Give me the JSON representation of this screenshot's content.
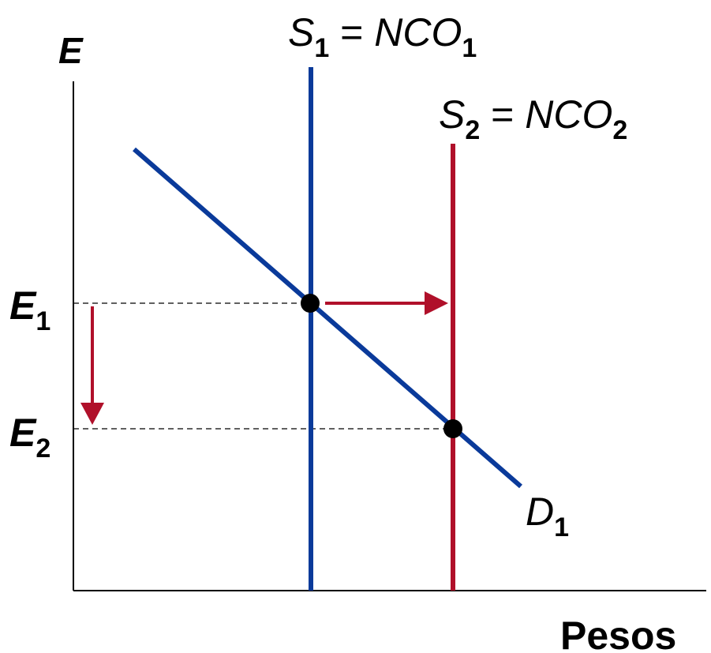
{
  "axes": {
    "y_label": "E",
    "x_label": "Pesos"
  },
  "curves": {
    "supply_1": {
      "main": "S",
      "sub": "1",
      "eq": " = ",
      "rhs": "NCO",
      "rhs_sub": "1"
    },
    "supply_2": {
      "main": "S",
      "sub": "2",
      "eq": " = ",
      "rhs": "NCO",
      "rhs_sub": "2"
    },
    "demand_1": {
      "main": "D",
      "sub": "1"
    }
  },
  "levels": {
    "e1": {
      "main": "E",
      "sub": "1"
    },
    "e2": {
      "main": "E",
      "sub": "2"
    }
  },
  "colors": {
    "supply_1": "#0a3a9a",
    "supply_2": "#b0102a",
    "demand": "#0a3a9a",
    "arrow": "#b0102a",
    "axis": "#000000"
  }
}
